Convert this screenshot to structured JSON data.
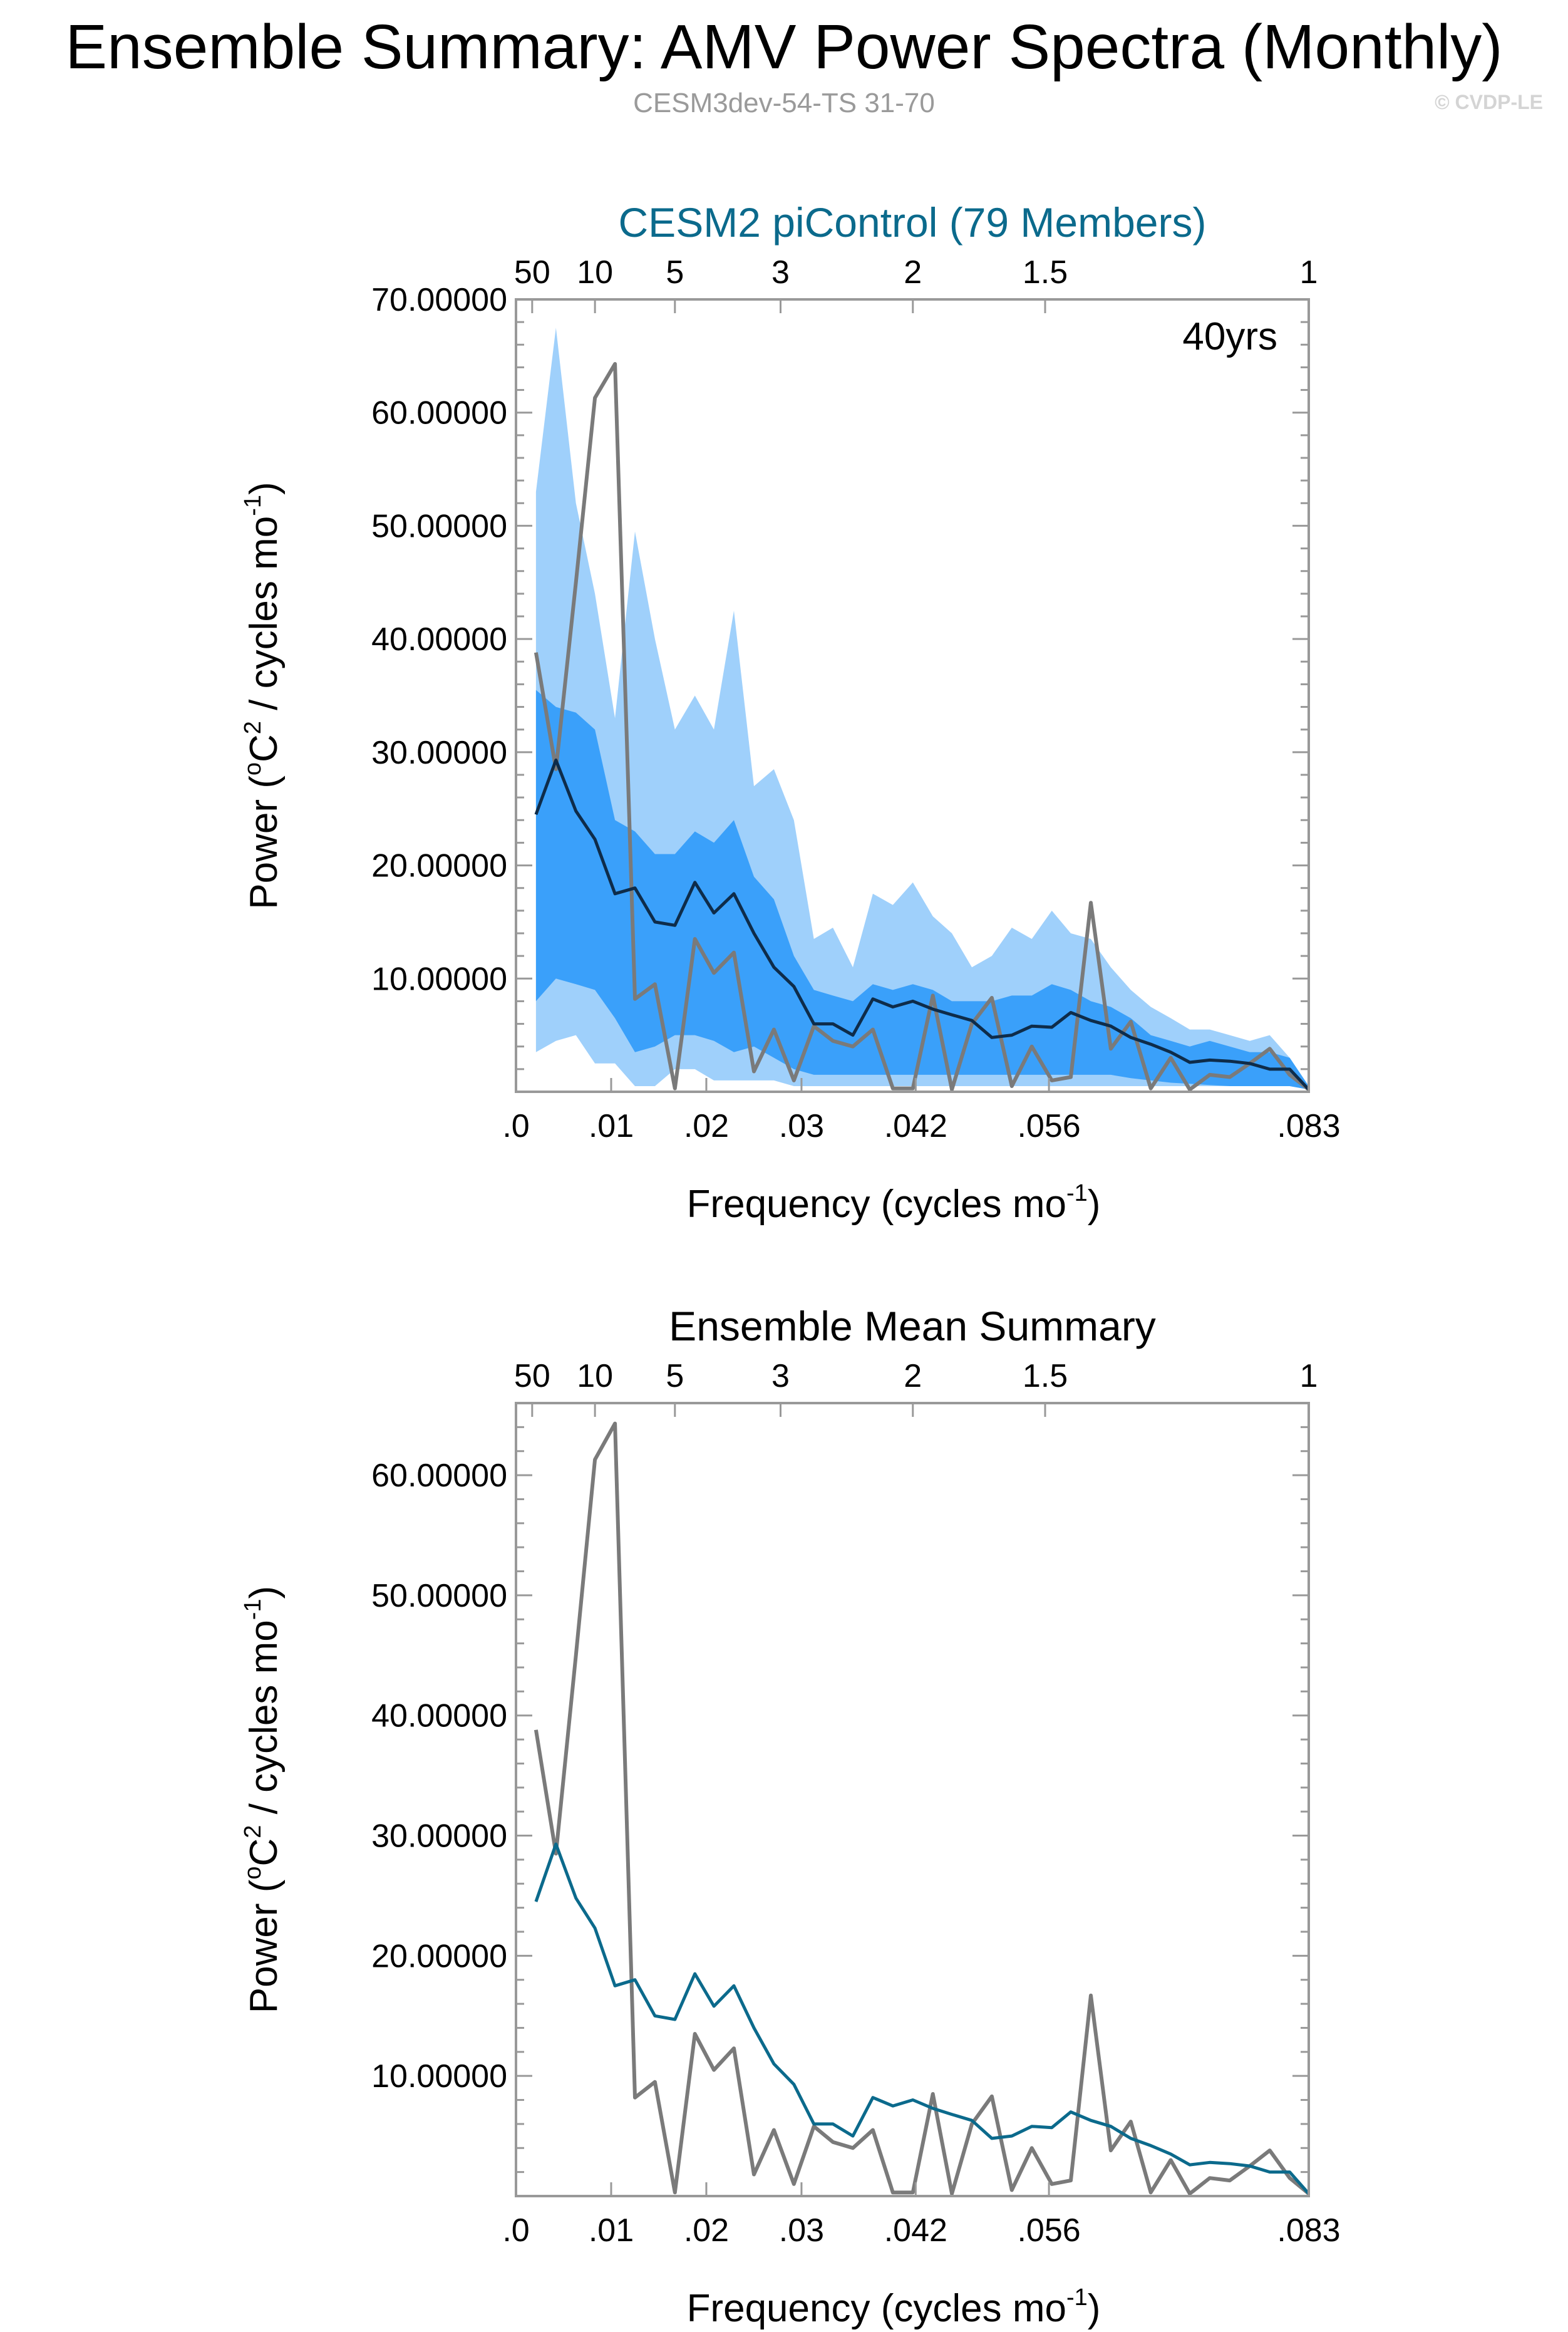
{
  "header": {
    "title": "Ensemble Summary: AMV Power Spectra (Monthly)",
    "subtitle": "CESM3dev-54-TS 31-70",
    "copyright": "© CVDP-LE"
  },
  "colors": {
    "band_outer": "#9fd0fb",
    "band_inner": "#3aa0fa",
    "ens_median_top": "#0e2c4a",
    "ens_mean_bottom": "#0b6a8c",
    "model": "#7a7a7a",
    "title_top": "#0b6a8c"
  },
  "chart_data": [
    {
      "type": "area",
      "title": "CESM2 piControl (79 Members)",
      "annotation": "40yrs",
      "xlabel": "Frequency (cycles mo",
      "xlabel_sup": "-1",
      "xlabel_end": ")",
      "ylabel_a": "Power (",
      "ylabel_sup1": "o",
      "ylabel_b": "C",
      "ylabel_sup2": "2",
      "ylabel_c": " / cycles mo",
      "ylabel_sup3": "-1",
      "ylabel_d": ")",
      "xlim": [
        0,
        0.0833
      ],
      "ylim": [
        0,
        70
      ],
      "x_ticks": [
        {
          "value": 0,
          "label": ".0"
        },
        {
          "value": 0.01,
          "label": ".01"
        },
        {
          "value": 0.02,
          "label": ".02"
        },
        {
          "value": 0.03,
          "label": ".03"
        },
        {
          "value": 0.042,
          "label": ".042"
        },
        {
          "value": 0.056,
          "label": ".056"
        },
        {
          "value": 0.0833,
          "label": ".083"
        }
      ],
      "top_ticks": [
        {
          "value": 0.0017,
          "label": "50"
        },
        {
          "value": 0.0083,
          "label": "10"
        },
        {
          "value": 0.0167,
          "label": "5"
        },
        {
          "value": 0.0278,
          "label": "3"
        },
        {
          "value": 0.0417,
          "label": "2"
        },
        {
          "value": 0.0556,
          "label": "1.5"
        },
        {
          "value": 0.0833,
          "label": "1"
        }
      ],
      "y_ticks": [
        {
          "value": 10,
          "label": "10.00000"
        },
        {
          "value": 20,
          "label": "20.00000"
        },
        {
          "value": 30,
          "label": "30.00000"
        },
        {
          "value": 40,
          "label": "40.00000"
        },
        {
          "value": 50,
          "label": "50.00000"
        },
        {
          "value": 60,
          "label": "60.00000"
        },
        {
          "value": 70,
          "label": "70.00000"
        }
      ],
      "x": [
        0.0021,
        0.0042,
        0.0063,
        0.0083,
        0.0104,
        0.0125,
        0.0146,
        0.0167,
        0.0188,
        0.0208,
        0.0229,
        0.025,
        0.0271,
        0.0292,
        0.0313,
        0.0333,
        0.0354,
        0.0375,
        0.0396,
        0.0417,
        0.0438,
        0.0458,
        0.0479,
        0.05,
        0.0521,
        0.0542,
        0.0563,
        0.0583,
        0.0604,
        0.0625,
        0.0646,
        0.0667,
        0.0688,
        0.0708,
        0.0729,
        0.075,
        0.0771,
        0.0792,
        0.0813,
        0.0833
      ],
      "band_outer_upper": [
        53,
        67.5,
        52,
        44,
        33,
        49.5,
        40,
        32,
        35,
        32,
        42.5,
        27,
        28.5,
        24,
        13.5,
        14.5,
        11,
        17.5,
        16.5,
        18.5,
        15.5,
        14,
        11,
        12,
        14.5,
        13.5,
        16,
        14,
        13.5,
        11,
        9,
        7.5,
        6.5,
        5.5,
        5.5,
        5,
        4.5,
        5,
        3,
        0.5
      ],
      "band_outer_lower": [
        3.5,
        4.5,
        5,
        2.5,
        2.5,
        0.5,
        0.5,
        2,
        2,
        1,
        1,
        1,
        1,
        0.5,
        0.5,
        0.5,
        0.5,
        0.5,
        0.5,
        0.5,
        0.5,
        0.5,
        0.5,
        0.5,
        0.5,
        0.5,
        0.5,
        0.5,
        0.5,
        0.5,
        0.5,
        0.5,
        0.5,
        0.5,
        0.5,
        0.5,
        0.5,
        0.5,
        0.5,
        0.2
      ],
      "band_inner_upper": [
        35.5,
        34,
        33.5,
        32,
        24,
        23,
        21,
        21,
        23,
        22,
        24,
        19,
        17,
        12,
        9,
        8.5,
        8,
        9.5,
        9,
        9.5,
        9,
        8,
        8,
        8,
        8.5,
        8.5,
        9.5,
        9,
        8,
        7.5,
        6.5,
        5,
        4.5,
        4,
        4.5,
        4,
        3.5,
        3.5,
        3,
        0.5
      ],
      "band_inner_lower": [
        8,
        10,
        9.5,
        9,
        6.5,
        3.5,
        4,
        5,
        5,
        4.5,
        3.5,
        4,
        3,
        2,
        1.5,
        1.5,
        1.5,
        1.5,
        1.5,
        1.5,
        1.5,
        1.5,
        1.5,
        1.5,
        1.5,
        1.5,
        1.5,
        1.5,
        1.5,
        1.5,
        1.2,
        1,
        0.8,
        0.7,
        0.6,
        0.5,
        0.5,
        0.5,
        0.5,
        0.2
      ],
      "series": [
        {
          "name": "",
          "role": "ensemble",
          "values": [
            24.5,
            29.3,
            24.8,
            22.3,
            17.5,
            18,
            15,
            14.7,
            18.5,
            15.8,
            17.5,
            14,
            11,
            9.3,
            6,
            6,
            5,
            8.2,
            7.5,
            8,
            7.3,
            6.8,
            6.3,
            4.8,
            5,
            5.8,
            5.7,
            7,
            6.3,
            5.8,
            4.8,
            4.2,
            3.5,
            2.6,
            2.8,
            2.7,
            2.5,
            2,
            2,
            0.2
          ]
        },
        {
          "name": "",
          "role": "model",
          "values": [
            38.8,
            28.5,
            45,
            61.3,
            64.3,
            8.2,
            9.5,
            0.3,
            13.5,
            10.5,
            12.3,
            1.8,
            5.5,
            1,
            5.8,
            4.5,
            4,
            5.5,
            0.3,
            0.3,
            8.5,
            0.2,
            6,
            8.3,
            0.5,
            4,
            1,
            1.3,
            16.7,
            3.8,
            6.2,
            0.3,
            3,
            0.2,
            1.5,
            1.3,
            2.5,
            3.8,
            1.5,
            0.2
          ]
        }
      ]
    },
    {
      "type": "line",
      "title": "Ensemble Mean Summary",
      "xlabel": "Frequency (cycles mo",
      "xlabel_sup": "-1",
      "xlabel_end": ")",
      "ylabel_a": "Power (",
      "ylabel_sup1": "o",
      "ylabel_b": "C",
      "ylabel_sup2": "2",
      "ylabel_c": " / cycles mo",
      "ylabel_sup3": "-1",
      "ylabel_d": ")",
      "xlim": [
        0,
        0.0833
      ],
      "ylim": [
        0,
        66
      ],
      "x_ticks": [
        {
          "value": 0,
          "label": ".0"
        },
        {
          "value": 0.01,
          "label": ".01"
        },
        {
          "value": 0.02,
          "label": ".02"
        },
        {
          "value": 0.03,
          "label": ".03"
        },
        {
          "value": 0.042,
          "label": ".042"
        },
        {
          "value": 0.056,
          "label": ".056"
        },
        {
          "value": 0.0833,
          "label": ".083"
        }
      ],
      "top_ticks": [
        {
          "value": 0.0017,
          "label": "50"
        },
        {
          "value": 0.0083,
          "label": "10"
        },
        {
          "value": 0.0167,
          "label": "5"
        },
        {
          "value": 0.0278,
          "label": "3"
        },
        {
          "value": 0.0417,
          "label": "2"
        },
        {
          "value": 0.0556,
          "label": "1.5"
        },
        {
          "value": 0.0833,
          "label": "1"
        }
      ],
      "y_ticks": [
        {
          "value": 10,
          "label": "10.00000"
        },
        {
          "value": 20,
          "label": "20.00000"
        },
        {
          "value": 30,
          "label": "30.00000"
        },
        {
          "value": 40,
          "label": "40.00000"
        },
        {
          "value": 50,
          "label": "50.00000"
        },
        {
          "value": 60,
          "label": "60.00000"
        }
      ],
      "x": [
        0.0021,
        0.0042,
        0.0063,
        0.0083,
        0.0104,
        0.0125,
        0.0146,
        0.0167,
        0.0188,
        0.0208,
        0.0229,
        0.025,
        0.0271,
        0.0292,
        0.0313,
        0.0333,
        0.0354,
        0.0375,
        0.0396,
        0.0417,
        0.0438,
        0.0458,
        0.0479,
        0.05,
        0.0521,
        0.0542,
        0.0563,
        0.0583,
        0.0604,
        0.0625,
        0.0646,
        0.0667,
        0.0688,
        0.0708,
        0.0729,
        0.075,
        0.0771,
        0.0792,
        0.0813,
        0.0833
      ],
      "series": [
        {
          "name": "",
          "role": "ensemble",
          "values": [
            24.5,
            29.3,
            24.8,
            22.3,
            17.5,
            18,
            15,
            14.7,
            18.5,
            15.8,
            17.5,
            14,
            11,
            9.3,
            6,
            6,
            5,
            8.2,
            7.5,
            8,
            7.3,
            6.8,
            6.3,
            4.8,
            5,
            5.8,
            5.7,
            7,
            6.3,
            5.8,
            4.8,
            4.2,
            3.5,
            2.6,
            2.8,
            2.7,
            2.5,
            2,
            2,
            0.2
          ]
        },
        {
          "name": "",
          "role": "model",
          "values": [
            38.8,
            28.5,
            45,
            61.3,
            64.3,
            8.2,
            9.5,
            0.3,
            13.5,
            10.5,
            12.3,
            1.8,
            5.5,
            1,
            5.8,
            4.5,
            4,
            5.5,
            0.3,
            0.3,
            8.5,
            0.2,
            6,
            8.3,
            0.5,
            4,
            1,
            1.3,
            16.7,
            3.8,
            6.2,
            0.3,
            3,
            0.2,
            1.5,
            1.3,
            2.5,
            3.8,
            1.5,
            0.2
          ]
        }
      ]
    }
  ]
}
